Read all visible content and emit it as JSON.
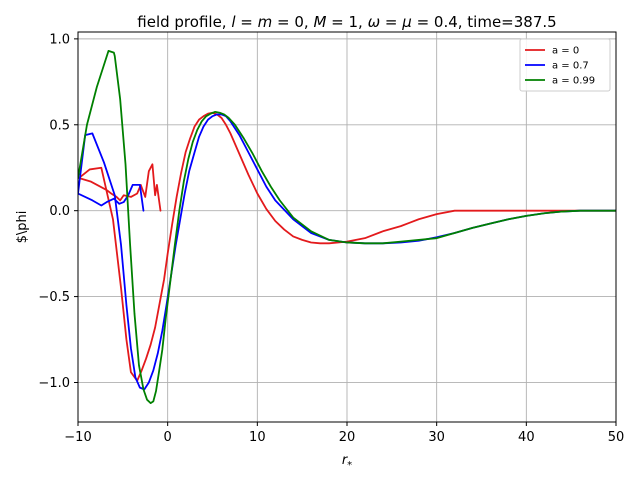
{
  "chart_data": {
    "type": "line",
    "title": "field profile, l = m = 0, M = 1, ω = μ = 0.4, time=387.5",
    "title_parts": {
      "prefix": "field profile, ",
      "l": "l",
      "eq1": " = ",
      "m": "m",
      "eq2": " = 0, ",
      "M": "M",
      "eq3": " = 1, ",
      "omega": "ω",
      "eq4": " = ",
      "mu": "μ",
      "suffix": " = 0.4, time=387.5"
    },
    "xlabel": "r",
    "xlabel_sub": "*",
    "ylabel": "$\\phi",
    "xlim": [
      -10,
      50
    ],
    "ylim": [
      -1.23,
      1.04
    ],
    "xticks": [
      -10,
      0,
      10,
      20,
      30,
      40,
      50
    ],
    "yticks": [
      -1.0,
      -0.5,
      0.0,
      0.5,
      1.0
    ],
    "xtick_labels": [
      "−10",
      "0",
      "10",
      "20",
      "30",
      "40",
      "50"
    ],
    "ytick_labels": [
      "−1.0",
      "−0.5",
      "0.0",
      "0.5",
      "1.0"
    ],
    "grid": true,
    "legend_position": "top-right",
    "series": [
      {
        "name": "a = 0",
        "color": "#e31a1c",
        "x": [
          -0.8,
          -1.2,
          -1.4,
          -1.7,
          -2.1,
          -2.5,
          -3.0,
          -3.4,
          -4.1,
          -4.9,
          -5.3,
          -5.7,
          -6.3,
          -6.8,
          -8.6,
          -9.9,
          -8.7,
          -7.4,
          -6.1,
          -5.2,
          -4.6,
          -4.1,
          -3.4,
          -2.9,
          -2.4,
          -1.9,
          -1.4,
          -0.9,
          -0.4,
          0.0,
          0.5,
          1.0,
          1.5,
          2.0,
          2.5,
          3.0,
          3.5,
          4.0,
          4.5,
          5.0,
          5.5,
          6.0,
          6.5,
          7.0,
          8.0,
          9.0,
          10.0,
          11.0,
          12.0,
          13.0,
          14.0,
          15.0,
          16.0,
          17.0,
          18.0,
          19.0,
          20.0,
          22.0,
          24.0,
          26.0,
          27.0,
          28.0,
          30.0,
          32.0,
          34.0,
          36.0,
          38.0,
          40.0,
          42.0,
          44.0,
          46.0,
          48.0,
          50.0
        ],
        "y": [
          0.0,
          0.15,
          0.09,
          0.27,
          0.23,
          0.08,
          0.15,
          0.1,
          0.08,
          0.09,
          0.06,
          0.08,
          0.1,
          0.12,
          0.17,
          0.19,
          0.24,
          0.25,
          -0.05,
          -0.45,
          -0.75,
          -0.94,
          -0.99,
          -0.93,
          -0.86,
          -0.78,
          -0.68,
          -0.54,
          -0.4,
          -0.25,
          -0.08,
          0.08,
          0.22,
          0.34,
          0.42,
          0.49,
          0.53,
          0.55,
          0.565,
          0.57,
          0.56,
          0.54,
          0.5,
          0.45,
          0.33,
          0.21,
          0.1,
          0.01,
          -0.06,
          -0.11,
          -0.15,
          -0.17,
          -0.185,
          -0.19,
          -0.19,
          -0.185,
          -0.18,
          -0.16,
          -0.12,
          -0.09,
          -0.07,
          -0.05,
          -0.02,
          0.0,
          0.0,
          0.0,
          0.0,
          0.0,
          0.0,
          0.0,
          0.0,
          0.0,
          0.0
        ]
      },
      {
        "name": "a = 0.7",
        "color": "#0000ff",
        "x": [
          -2.7,
          -3.1,
          -3.5,
          -3.9,
          -4.4,
          -4.9,
          -5.4,
          -6.0,
          -6.8,
          -7.4,
          -8.4,
          -10.0,
          -9.2,
          -8.4,
          -7.1,
          -5.9,
          -5.2,
          -4.6,
          -4.1,
          -3.6,
          -3.1,
          -2.6,
          -2.1,
          -1.6,
          -1.1,
          -0.6,
          -0.1,
          0.4,
          0.9,
          1.4,
          1.9,
          2.4,
          3.0,
          3.5,
          4.0,
          4.5,
          5.0,
          5.5,
          6.0,
          6.5,
          7.0,
          8.0,
          9.0,
          10.0,
          11.0,
          12.0,
          14.0,
          16.0,
          18.0,
          20.0,
          22.0,
          24.0,
          26.0,
          28.0,
          30.0,
          32.0,
          34.0,
          36.0,
          38.0,
          40.0,
          42.0,
          44.0,
          46.0,
          48.0,
          50.0
        ],
        "y": [
          0.0,
          0.15,
          0.15,
          0.15,
          0.09,
          0.05,
          0.04,
          0.07,
          0.05,
          0.03,
          0.06,
          0.1,
          0.44,
          0.45,
          0.28,
          0.09,
          -0.2,
          -0.55,
          -0.8,
          -0.97,
          -1.03,
          -1.04,
          -1.0,
          -0.93,
          -0.83,
          -0.7,
          -0.54,
          -0.37,
          -0.2,
          -0.05,
          0.1,
          0.23,
          0.34,
          0.43,
          0.49,
          0.53,
          0.55,
          0.56,
          0.56,
          0.55,
          0.52,
          0.44,
          0.34,
          0.24,
          0.14,
          0.06,
          -0.05,
          -0.13,
          -0.17,
          -0.185,
          -0.19,
          -0.19,
          -0.185,
          -0.175,
          -0.155,
          -0.13,
          -0.1,
          -0.075,
          -0.05,
          -0.03,
          -0.015,
          -0.005,
          0.0,
          0.0,
          0.0
        ],
        "note_shape": "overlaps red and green beyond x=4"
      },
      {
        "name": "a = 0.99",
        "color": "#008000",
        "x": [
          -10.0,
          -9.0,
          -7.9,
          -6.6,
          -6.0,
          -5.9,
          -5.3,
          -4.7,
          -4.2,
          -3.7,
          -3.2,
          -2.7,
          -2.3,
          -1.9,
          -1.6,
          -1.3,
          -1.0,
          -0.6,
          -0.2,
          0.3,
          0.8,
          1.3,
          1.8,
          2.3,
          2.8,
          3.3,
          3.8,
          4.3,
          4.8,
          5.3,
          5.8,
          6.3,
          6.8,
          7.5,
          8.5,
          9.5,
          10.5,
          11.5,
          12.5,
          14.0,
          16.0,
          18.0,
          20.0,
          22.0,
          24.0,
          26.0,
          28.0,
          30.0,
          32.0,
          34.0,
          36.0,
          38.0,
          40.0,
          42.0,
          44.0,
          46.0,
          48.0,
          50.0
        ],
        "y": [
          0.19,
          0.5,
          0.72,
          0.93,
          0.92,
          0.9,
          0.65,
          0.27,
          -0.19,
          -0.6,
          -0.9,
          -1.04,
          -1.1,
          -1.12,
          -1.11,
          -1.05,
          -0.95,
          -0.81,
          -0.62,
          -0.41,
          -0.2,
          0.0,
          0.17,
          0.3,
          0.4,
          0.47,
          0.52,
          0.55,
          0.565,
          0.575,
          0.57,
          0.56,
          0.54,
          0.5,
          0.42,
          0.33,
          0.23,
          0.14,
          0.06,
          -0.04,
          -0.12,
          -0.17,
          -0.185,
          -0.19,
          -0.19,
          -0.18,
          -0.17,
          -0.16,
          -0.13,
          -0.1,
          -0.075,
          -0.05,
          -0.03,
          -0.015,
          -0.005,
          0.0,
          0.0,
          0.0
        ]
      }
    ]
  }
}
